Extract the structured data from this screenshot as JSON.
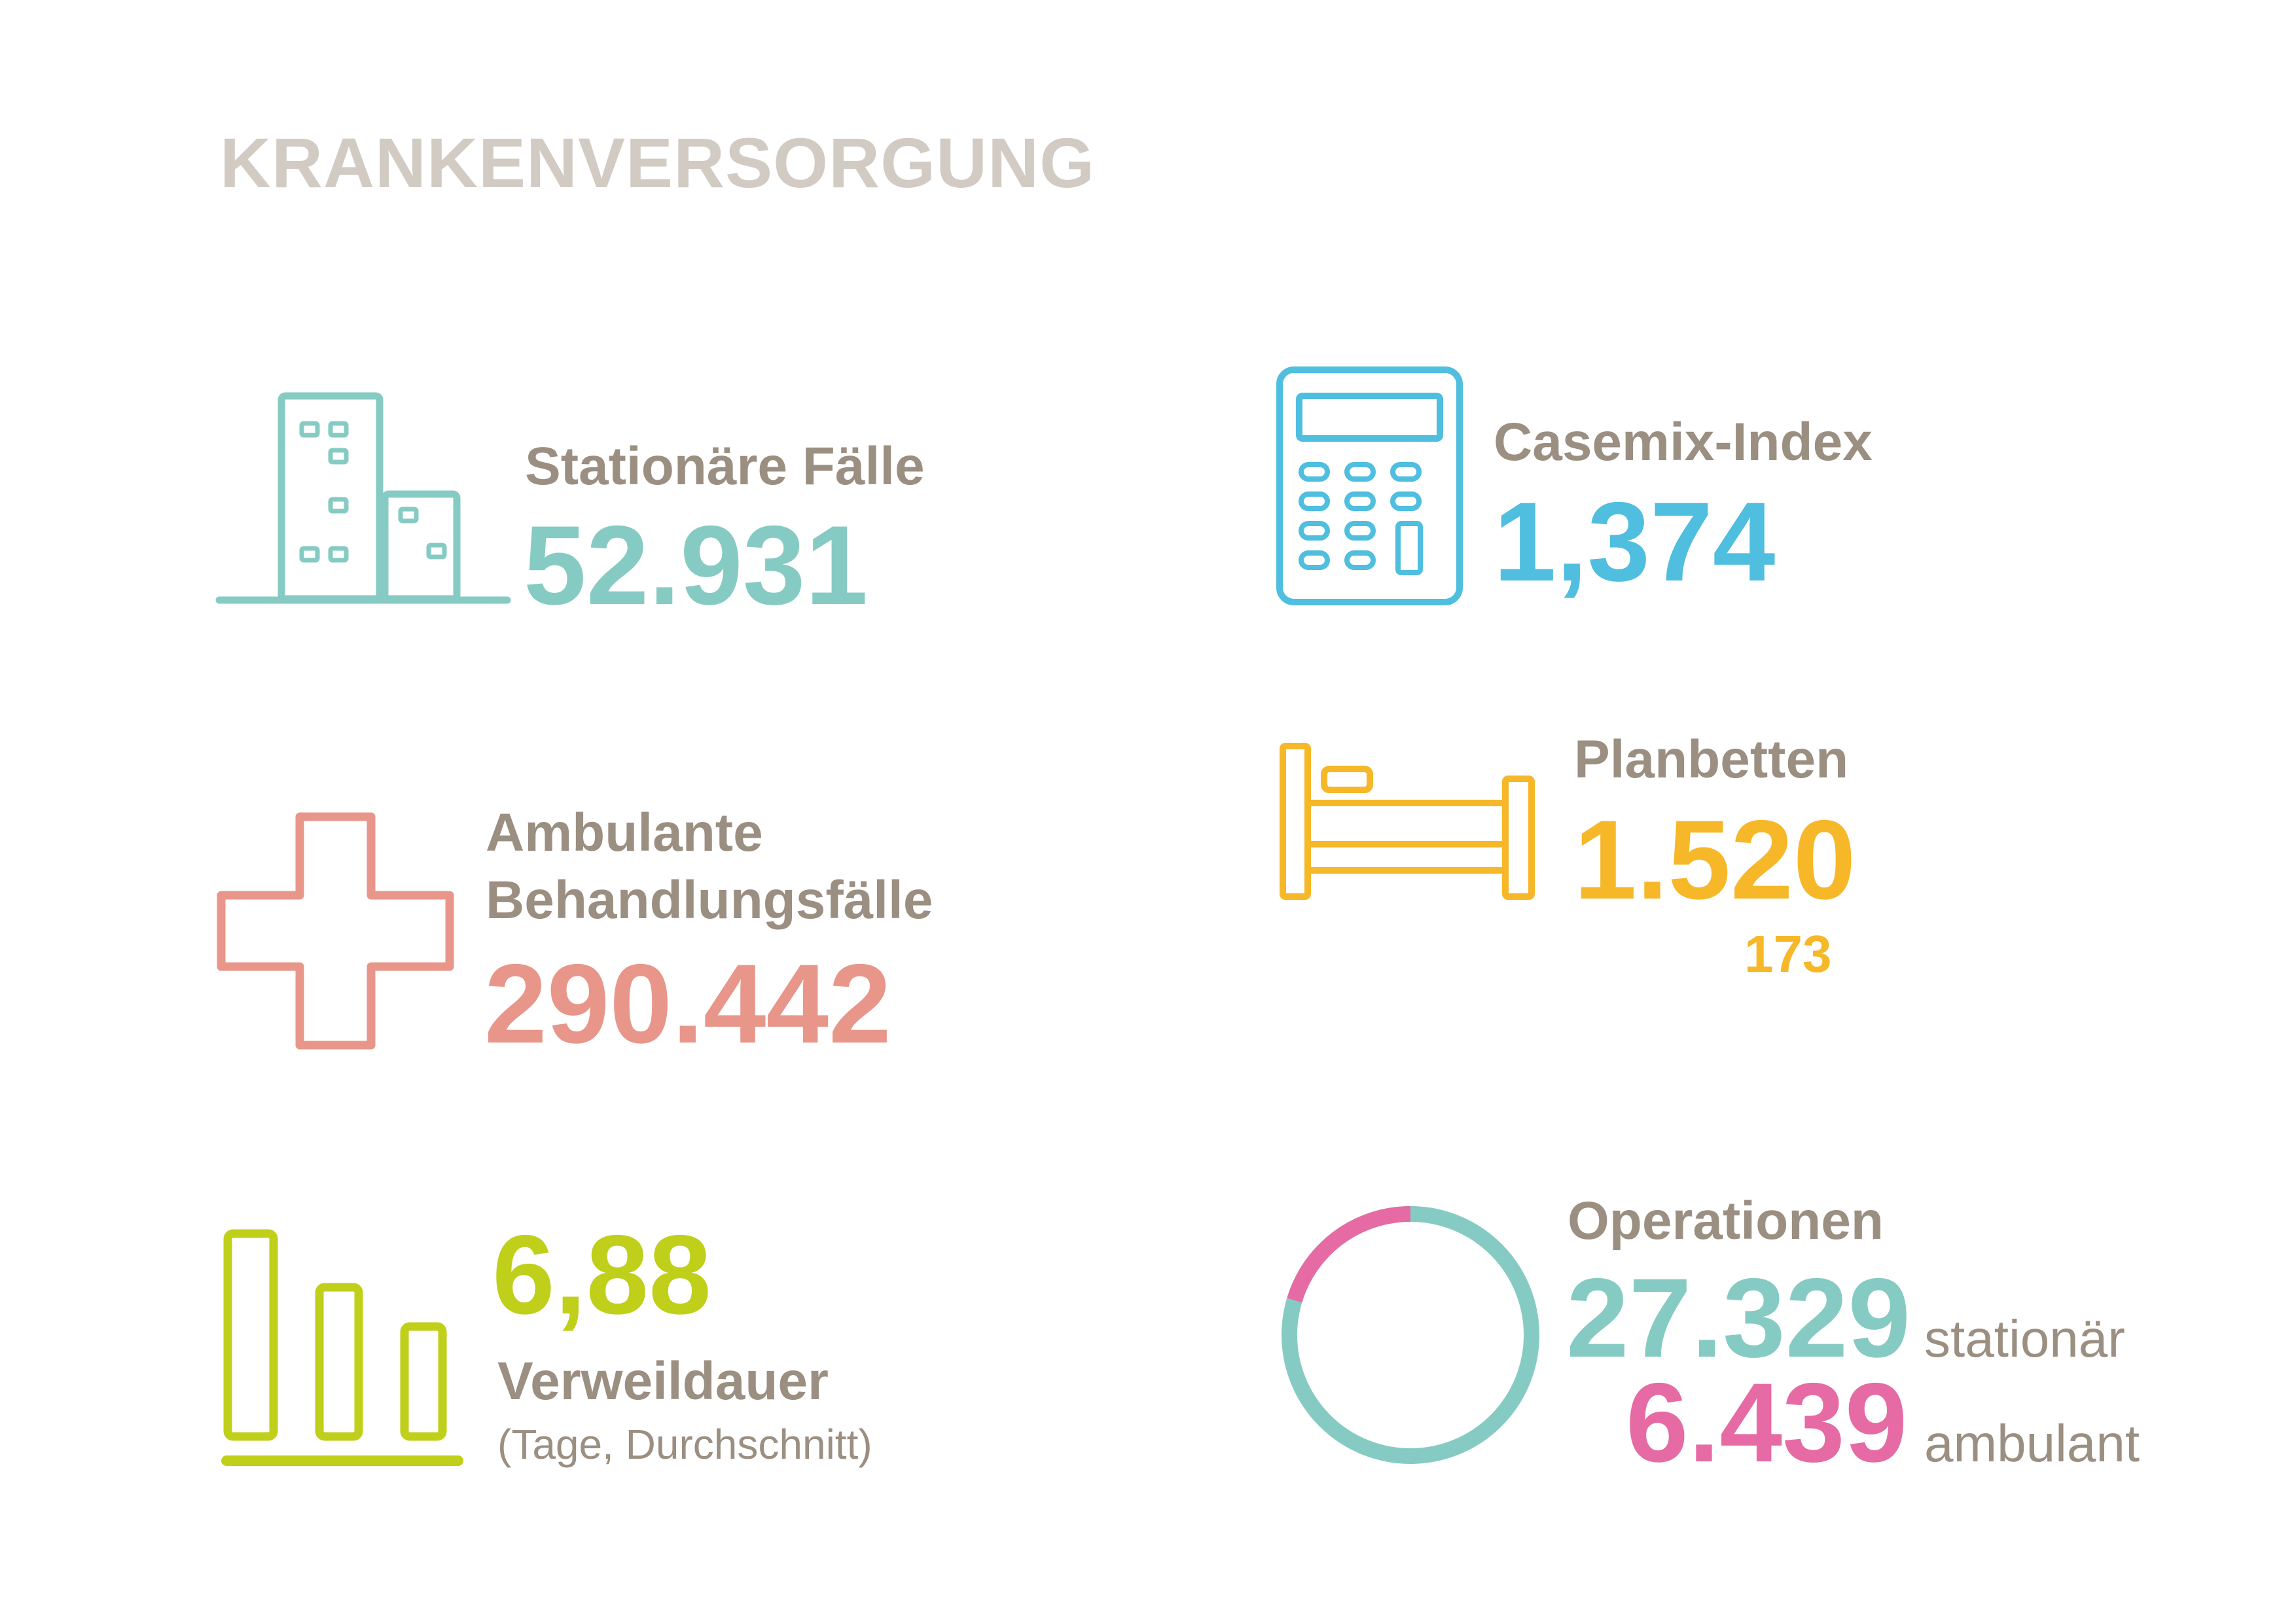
{
  "title": "KRANKENVERSORGUNG",
  "colors": {
    "title": "#d2cbc3",
    "label": "#9b8f82",
    "teal": "#86cbc3",
    "blue": "#4fbedf",
    "salmon": "#e8968a",
    "yellow": "#f6b828",
    "lime": "#bfcf1a",
    "pink": "#e66aa4"
  },
  "stats": {
    "stationaere": {
      "label": "Stationäre Fälle",
      "value": "52.931",
      "icon": "hospital-building-icon"
    },
    "casemix": {
      "label": "Casemix-Index",
      "value": "1,374",
      "icon": "calculator-icon"
    },
    "ambulante": {
      "label_line1": "Ambulante",
      "label_line2": "Behandlungsfälle",
      "value": "290.442",
      "icon": "medical-cross-icon"
    },
    "planbetten": {
      "label": "Planbetten",
      "value": "1.520",
      "subvalue": "173",
      "icon": "bed-icon"
    },
    "verweildauer": {
      "value": "6,88",
      "label": "Verweildauer",
      "note": "(Tage, Durchschnitt)",
      "icon": "bar-chart-icon"
    },
    "operationen": {
      "label": "Operationen",
      "stationaer_value": "27.329",
      "stationaer_label": "stationär",
      "ambulant_value": "6.439",
      "ambulant_label": "ambulant",
      "icon": "donut-ring-icon"
    }
  }
}
